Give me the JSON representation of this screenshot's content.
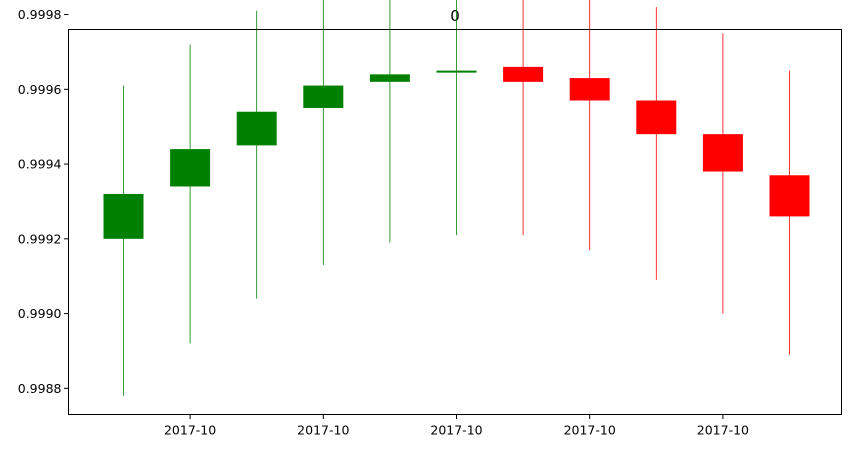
{
  "chart_data": {
    "type": "candlestick",
    "title": "0",
    "xlabel": "",
    "ylabel": "",
    "x_tick_labels": [
      "2017-10",
      "2017-10",
      "2017-10",
      "2017-10",
      "2017-10"
    ],
    "y_ticks": [
      0.9988,
      0.999,
      0.9992,
      0.9994,
      0.9996,
      0.9998
    ],
    "y_tick_labels": [
      "0.9988",
      "0.9990",
      "0.9992",
      "0.9994",
      "0.9996",
      "0.9998"
    ],
    "ylim": [
      0.99873,
      0.99976
    ],
    "grid": false,
    "up_color": "#008000",
    "down_color": "#ff0000",
    "candles": [
      {
        "open": 0.9992,
        "high": 0.99961,
        "low": 0.99878,
        "close": 0.99932
      },
      {
        "open": 0.99934,
        "high": 0.99972,
        "low": 0.99892,
        "close": 0.99944
      },
      {
        "open": 0.99945,
        "high": 0.99981,
        "low": 0.99904,
        "close": 0.99954
      },
      {
        "open": 0.99955,
        "high": 0.99986,
        "low": 0.99913,
        "close": 0.99961
      },
      {
        "open": 0.99962,
        "high": 0.9999,
        "low": 0.99919,
        "close": 0.99964
      },
      {
        "open": 0.99965,
        "high": 0.99991,
        "low": 0.99921,
        "close": 0.99965
      },
      {
        "open": 0.99966,
        "high": 0.99991,
        "low": 0.99921,
        "close": 0.99962
      },
      {
        "open": 0.99963,
        "high": 0.99988,
        "low": 0.99917,
        "close": 0.99957
      },
      {
        "open": 0.99957,
        "high": 0.99982,
        "low": 0.99909,
        "close": 0.99948
      },
      {
        "open": 0.99948,
        "high": 0.99975,
        "low": 0.999,
        "close": 0.99938
      },
      {
        "open": 0.99937,
        "high": 0.99965,
        "low": 0.99889,
        "close": 0.99926
      }
    ]
  }
}
